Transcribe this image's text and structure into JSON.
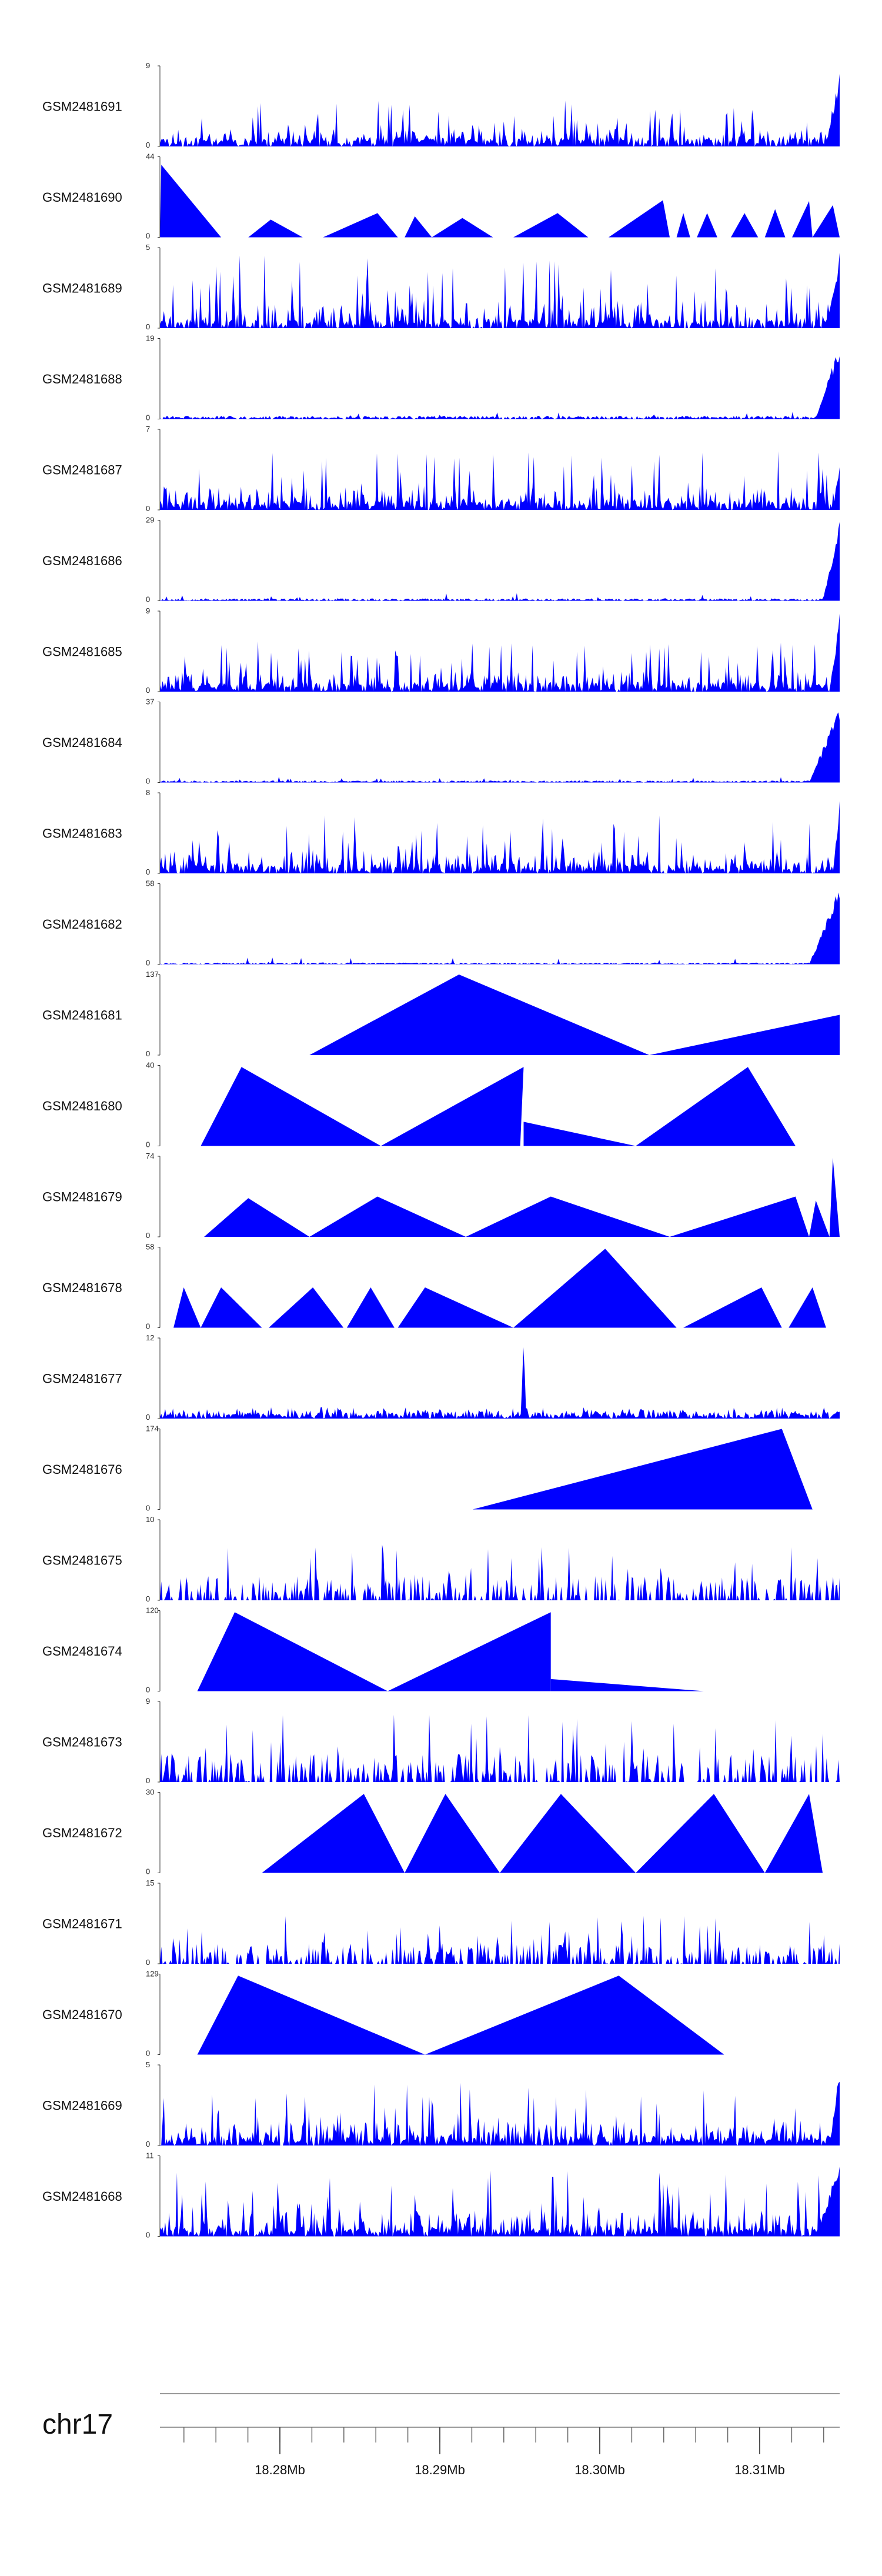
{
  "chart_data": {
    "type": "area",
    "title": "",
    "chromosome": "chr17",
    "xlim": [
      18.2725,
      18.315
    ],
    "x_unit": "Mb",
    "x_ticks": [
      {
        "value": 18.28,
        "label": "18.28Mb"
      },
      {
        "value": 18.29,
        "label": "18.29Mb"
      },
      {
        "value": 18.3,
        "label": "18.30Mb"
      },
      {
        "value": 18.31,
        "label": "18.31Mb"
      }
    ],
    "tracks": [
      {
        "name": "GSM2481691",
        "ymax": 9,
        "ymin": 0,
        "profile": "dense",
        "seed": 11,
        "base": 0.22,
        "rise": [
          0.98,
          0.94
        ]
      },
      {
        "name": "GSM2481690",
        "ymax": 44,
        "ymin": 0,
        "profile": "peaks",
        "peaks": [
          [
            0.0,
            0.09,
            0.002,
            0.9
          ],
          [
            0.09,
            0.045,
            0.037,
            0.3
          ],
          [
            0.13,
            0.21,
            0.163,
            0.22
          ],
          [
            0.24,
            0.35,
            0.32,
            0.3
          ],
          [
            0.36,
            0.4,
            0.375,
            0.26
          ],
          [
            0.4,
            0.49,
            0.445,
            0.24
          ],
          [
            0.52,
            0.63,
            0.585,
            0.3
          ],
          [
            0.66,
            0.75,
            0.74,
            0.46
          ],
          [
            0.76,
            0.78,
            0.77,
            0.3
          ],
          [
            0.79,
            0.82,
            0.805,
            0.3
          ],
          [
            0.84,
            0.88,
            0.86,
            0.3
          ],
          [
            0.89,
            0.92,
            0.905,
            0.35
          ],
          [
            0.93,
            0.96,
            0.955,
            0.45
          ],
          [
            0.96,
            1.0,
            0.99,
            0.4
          ]
        ]
      },
      {
        "name": "GSM2481689",
        "ymax": 5,
        "ymin": 0,
        "profile": "dense",
        "seed": 23,
        "base": 0.35,
        "rise": [
          0.98,
          0.95
        ]
      },
      {
        "name": "GSM2481688",
        "ymax": 19,
        "ymin": 0,
        "profile": "lowrise",
        "seed": 31,
        "base": 0.04,
        "rise": [
          0.965,
          0.98
        ]
      },
      {
        "name": "GSM2481687",
        "ymax": 7,
        "ymin": 0,
        "profile": "dense",
        "seed": 41,
        "base": 0.28,
        "rise": [
          0.99,
          0.55
        ]
      },
      {
        "name": "GSM2481686",
        "ymax": 29,
        "ymin": 0,
        "profile": "lowrise",
        "seed": 53,
        "base": 0.03,
        "rise": [
          0.975,
          0.98
        ]
      },
      {
        "name": "GSM2481685",
        "ymax": 9,
        "ymin": 0,
        "profile": "dense",
        "seed": 61,
        "base": 0.25,
        "rise": [
          0.985,
          0.97
        ]
      },
      {
        "name": "GSM2481684",
        "ymax": 37,
        "ymin": 0,
        "profile": "lowrise",
        "seed": 71,
        "base": 0.025,
        "rise": [
          0.955,
          0.96
        ]
      },
      {
        "name": "GSM2481683",
        "ymax": 8,
        "ymin": 0,
        "profile": "dense",
        "seed": 83,
        "base": 0.28,
        "rise": [
          0.99,
          0.93
        ]
      },
      {
        "name": "GSM2481682",
        "ymax": 58,
        "ymin": 0,
        "profile": "lowrise",
        "seed": 97,
        "base": 0.02,
        "rise": [
          0.955,
          0.97
        ]
      },
      {
        "name": "GSM2481681",
        "ymax": 137,
        "ymin": 0,
        "profile": "peaks",
        "peaks": [
          [
            0.22,
            0.72,
            0.44,
            1.0
          ],
          [
            0.72,
            1.0,
            1.0,
            0.5
          ]
        ]
      },
      {
        "name": "GSM2481680",
        "ymax": 40,
        "ymin": 0,
        "profile": "peaks",
        "peaks": [
          [
            0.06,
            0.325,
            0.12,
            0.98
          ],
          [
            0.325,
            0.53,
            0.535,
            0.98
          ],
          [
            0.535,
            0.7,
            0.535,
            0.3
          ],
          [
            0.7,
            0.935,
            0.865,
            0.98
          ]
        ]
      },
      {
        "name": "GSM2481679",
        "ymax": 74,
        "ymin": 0,
        "profile": "peaks",
        "peaks": [
          [
            0.065,
            0.22,
            0.13,
            0.48
          ],
          [
            0.22,
            0.45,
            0.32,
            0.5
          ],
          [
            0.45,
            0.75,
            0.575,
            0.5
          ],
          [
            0.75,
            0.955,
            0.935,
            0.5
          ],
          [
            0.955,
            0.985,
            0.965,
            0.45
          ],
          [
            0.985,
            1.0,
            0.99,
            0.98
          ]
        ]
      },
      {
        "name": "GSM2481678",
        "ymax": 58,
        "ymin": 0,
        "profile": "peaks",
        "peaks": [
          [
            0.02,
            0.06,
            0.035,
            0.5
          ],
          [
            0.06,
            0.15,
            0.09,
            0.5
          ],
          [
            0.16,
            0.27,
            0.225,
            0.5
          ],
          [
            0.275,
            0.345,
            0.31,
            0.5
          ],
          [
            0.35,
            0.52,
            0.39,
            0.5
          ],
          [
            0.52,
            0.76,
            0.655,
            0.98
          ],
          [
            0.77,
            0.915,
            0.885,
            0.5
          ],
          [
            0.925,
            0.98,
            0.96,
            0.5
          ]
        ]
      },
      {
        "name": "GSM2481677",
        "ymax": 12,
        "ymin": 0,
        "profile": "sparsepeak",
        "seed": 109,
        "base": 0.14,
        "spike": [
          0.535,
          0.98
        ]
      },
      {
        "name": "GSM2481676",
        "ymax": 174,
        "ymin": 0,
        "profile": "peaks",
        "peaks": [
          [
            0.46,
            0.96,
            0.915,
            1.0
          ],
          [
            0.92,
            0.96,
            0.92,
            0.3
          ]
        ]
      },
      {
        "name": "GSM2481675",
        "ymax": 10,
        "ymin": 0,
        "profile": "sparse",
        "seed": 127,
        "base": 0.3
      },
      {
        "name": "GSM2481674",
        "ymax": 120,
        "ymin": 0,
        "profile": "peaks",
        "peaks": [
          [
            0.055,
            0.335,
            0.11,
            0.98
          ],
          [
            0.335,
            0.575,
            0.575,
            0.98
          ],
          [
            0.575,
            0.8,
            0.575,
            0.15
          ]
        ]
      },
      {
        "name": "GSM2481673",
        "ymax": 9,
        "ymin": 0,
        "profile": "sparse",
        "seed": 139,
        "base": 0.35
      },
      {
        "name": "GSM2481672",
        "ymax": 30,
        "ymin": 0,
        "profile": "peaks",
        "peaks": [
          [
            0.15,
            0.36,
            0.3,
            0.98
          ],
          [
            0.36,
            0.5,
            0.42,
            0.98
          ],
          [
            0.5,
            0.7,
            0.59,
            0.98
          ],
          [
            0.7,
            0.89,
            0.815,
            0.98
          ],
          [
            0.89,
            0.975,
            0.955,
            0.98
          ]
        ]
      },
      {
        "name": "GSM2481671",
        "ymax": 15,
        "ymin": 0,
        "profile": "sparse",
        "seed": 149,
        "base": 0.25
      },
      {
        "name": "GSM2481670",
        "ymax": 129,
        "ymin": 0,
        "profile": "peaks",
        "peaks": [
          [
            0.055,
            0.39,
            0.115,
            0.98
          ],
          [
            0.39,
            0.83,
            0.675,
            0.98
          ]
        ]
      },
      {
        "name": "GSM2481669",
        "ymax": 5,
        "ymin": 0,
        "profile": "dense",
        "seed": 163,
        "base": 0.3,
        "rise": [
          0.985,
          0.97
        ]
      },
      {
        "name": "GSM2481668",
        "ymax": 11,
        "ymin": 0,
        "profile": "dense",
        "seed": 173,
        "base": 0.32,
        "rise": [
          0.965,
          0.95
        ]
      }
    ]
  }
}
